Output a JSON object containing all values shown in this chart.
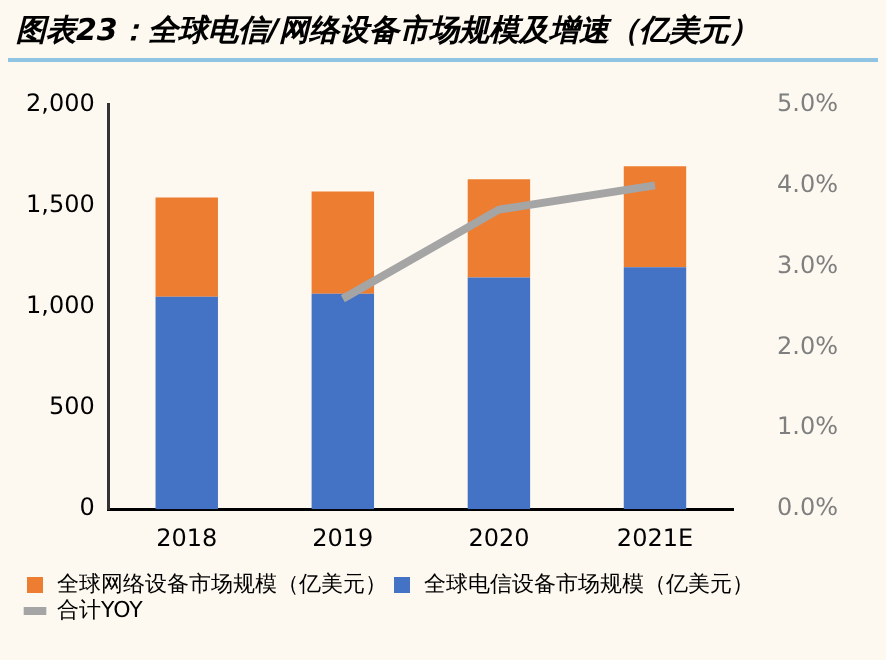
{
  "chart_data": {
    "type": "bar",
    "title": "图表23：全球电信/网络设备市场规模及增速（亿美元）",
    "categories": [
      "2018",
      "2019",
      "2020",
      "2021E"
    ],
    "stacked": true,
    "series": [
      {
        "name": "全球电信设备市场规模（亿美元）",
        "color": "#4472c4",
        "values": [
          1050,
          1065,
          1145,
          1195
        ]
      },
      {
        "name": "全球网络设备市场规模（亿美元）",
        "color": "#ed7d31",
        "values": [
          490,
          505,
          485,
          500
        ]
      },
      {
        "name": "合计YOY",
        "type": "line",
        "axis": "y2",
        "color": "#a5a5a5",
        "marker": "none",
        "values": [
          null,
          2.6,
          3.7,
          4.0
        ]
      }
    ],
    "ylim": [
      0,
      2000
    ],
    "yticks": [
      {
        "value": 0,
        "label": "0"
      },
      {
        "value": 500,
        "label": "500"
      },
      {
        "value": 1000,
        "label": "1,000"
      },
      {
        "value": 1500,
        "label": "1,500"
      },
      {
        "value": 2000,
        "label": "2,000"
      }
    ],
    "y2lim": [
      0,
      5
    ],
    "y2ticks": [
      {
        "value": 0,
        "label": "0.0%"
      },
      {
        "value": 1,
        "label": "1.0%"
      },
      {
        "value": 2,
        "label": "2.0%"
      },
      {
        "value": 3,
        "label": "3.0%"
      },
      {
        "value": 4,
        "label": "4.0%"
      },
      {
        "value": 5,
        "label": "5.0%"
      }
    ],
    "grid": false,
    "legend": "bottom"
  }
}
